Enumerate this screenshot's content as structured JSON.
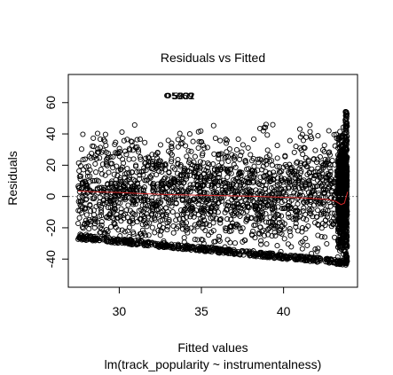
{
  "chart_data": {
    "type": "scatter",
    "title": "Residuals vs Fitted",
    "xlabel": "Fitted values",
    "subtitle": "lm(track_popularity ~ instrumentalness)",
    "ylabel": "Residuals",
    "xlim": [
      26.9,
      44.5
    ],
    "ylim": [
      -58,
      78
    ],
    "x_ticks": [
      30,
      35,
      40
    ],
    "y_ticks": [
      -40,
      -20,
      0,
      20,
      40,
      60
    ],
    "reference_line": {
      "y": 0,
      "style": "dotted",
      "color": "#808080"
    },
    "smoother": {
      "color": "#d62728",
      "x": [
        27.5,
        28.5,
        30,
        31.5,
        33,
        35,
        36.5,
        38,
        39.5,
        41,
        42,
        42.8,
        43.2,
        43.5,
        43.7,
        43.9
      ],
      "y": [
        3.5,
        3,
        2.6,
        1.8,
        1.2,
        0.8,
        0.5,
        0.2,
        -0.3,
        -0.8,
        -1.4,
        -2,
        -3.2,
        -5.2,
        -4.2,
        3
      ]
    },
    "outliers": [
      {
        "x": 32.9,
        "y": 64.5,
        "label": "5969"
      },
      {
        "x": 32.95,
        "y": 64.5,
        "label": "5909"
      },
      {
        "x": 33.0,
        "y": 64.5,
        "label": "5832"
      }
    ],
    "point_color": "#000000",
    "grid": false
  }
}
